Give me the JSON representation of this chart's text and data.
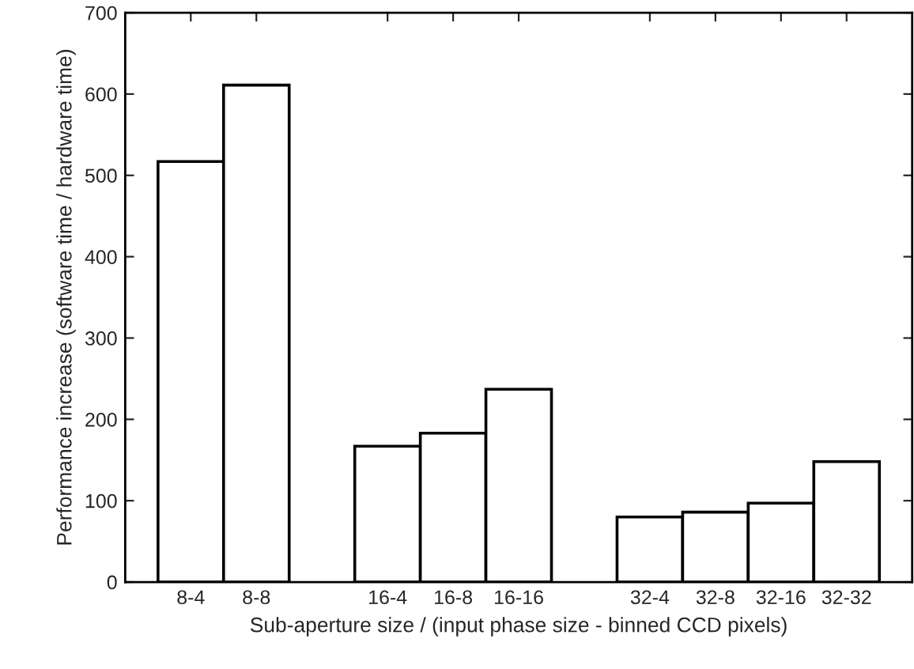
{
  "chart_data": {
    "type": "bar",
    "xlabel": "Sub-aperture size / (input phase size - binned CCD pixels)",
    "ylabel": "Performance increase (software time / hardware time)",
    "categories": [
      "8-4",
      "8-8",
      null,
      "16-4",
      "16-8",
      "16-16",
      null,
      "32-4",
      "32-8",
      "32-16",
      "32-32"
    ],
    "values": [
      517,
      611,
      null,
      167,
      183,
      237,
      null,
      80,
      86,
      97,
      148
    ],
    "color": "#ffffff",
    "ylim": [
      0,
      700
    ],
    "yticks": [
      0,
      100,
      200,
      300,
      400,
      500,
      600,
      700
    ],
    "grid": false,
    "legend": false
  }
}
